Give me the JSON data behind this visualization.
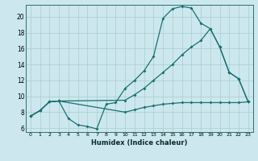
{
  "xlabel": "Humidex (Indice chaleur)",
  "background_color": "#cce8ee",
  "grid_color": "#aacccc",
  "line_color": "#1a7070",
  "xlim": [
    -0.5,
    23.5
  ],
  "ylim": [
    5.5,
    21.5
  ],
  "xticks": [
    0,
    1,
    2,
    3,
    4,
    5,
    6,
    7,
    8,
    9,
    10,
    11,
    12,
    13,
    14,
    15,
    16,
    17,
    18,
    19,
    20,
    21,
    22,
    23
  ],
  "yticks": [
    6,
    8,
    10,
    12,
    14,
    16,
    18,
    20
  ],
  "line1_x": [
    0,
    1,
    2,
    3,
    4,
    5,
    6,
    7,
    8,
    9,
    10,
    11,
    12,
    13,
    14,
    15,
    16,
    17,
    18,
    19,
    20,
    21,
    22,
    23
  ],
  "line1_y": [
    7.5,
    8.2,
    9.3,
    9.4,
    7.2,
    6.4,
    6.2,
    5.9,
    9.0,
    9.2,
    11.0,
    12.0,
    13.2,
    15.0,
    19.8,
    21.0,
    21.3,
    21.1,
    19.2,
    18.5,
    16.2,
    13.0,
    12.2,
    9.3
  ],
  "line2_x": [
    0,
    1,
    2,
    3,
    10,
    11,
    12,
    13,
    14,
    15,
    16,
    17,
    18,
    19,
    20,
    21,
    22,
    23
  ],
  "line2_y": [
    7.5,
    8.2,
    9.3,
    9.4,
    9.5,
    10.2,
    11.0,
    12.0,
    13.0,
    14.0,
    15.2,
    16.2,
    17.0,
    18.5,
    16.2,
    13.0,
    12.2,
    9.3
  ],
  "line3_x": [
    0,
    1,
    2,
    3,
    10,
    11,
    12,
    13,
    14,
    15,
    16,
    17,
    18,
    19,
    20,
    21,
    22,
    23
  ],
  "line3_y": [
    7.5,
    8.2,
    9.3,
    9.4,
    8.0,
    8.3,
    8.6,
    8.8,
    9.0,
    9.1,
    9.2,
    9.2,
    9.2,
    9.2,
    9.2,
    9.2,
    9.2,
    9.3
  ]
}
